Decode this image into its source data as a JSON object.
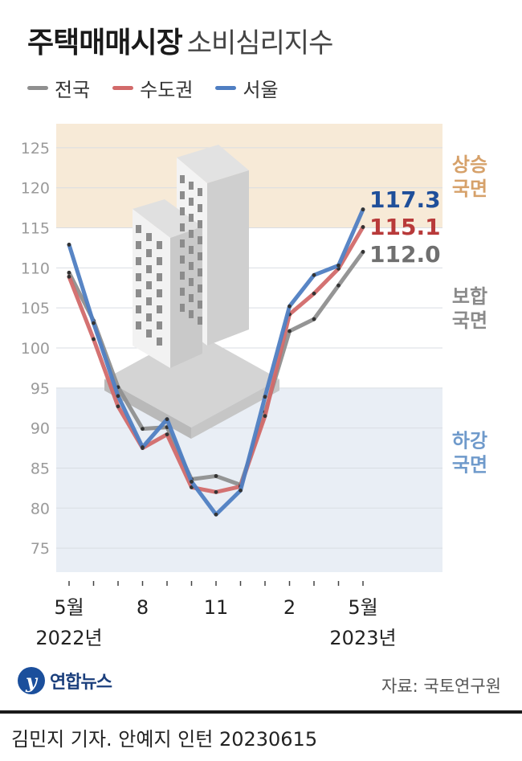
{
  "header": {
    "title": "주택매매시장",
    "subtitle": "소비심리지수"
  },
  "legend": [
    {
      "label": "전국",
      "color": "#8f8f8f"
    },
    {
      "label": "수도권",
      "color": "#d26a6a"
    },
    {
      "label": "서울",
      "color": "#4f7ec2"
    }
  ],
  "chart_data": {
    "type": "line",
    "ylim": [
      72,
      128
    ],
    "yticks": [
      75,
      80,
      85,
      90,
      95,
      100,
      105,
      110,
      115,
      120,
      125
    ],
    "x_tick_labels": [
      "5월",
      "8",
      "11",
      "2",
      "5월"
    ],
    "year_labels": [
      "2022년",
      "2023년"
    ],
    "x": [
      "2022-05",
      "2022-06",
      "2022-07",
      "2022-08",
      "2022-09",
      "2022-10",
      "2022-11",
      "2022-12",
      "2023-01",
      "2023-02",
      "2023-03",
      "2023-04",
      "2023-05"
    ],
    "series": [
      {
        "name": "전국",
        "color": "#8f8f8f",
        "values": [
          109.4,
          103.4,
          95.1,
          89.9,
          90.1,
          83.6,
          84.0,
          82.9,
          92.0,
          102.1,
          103.6,
          107.8,
          112.0
        ]
      },
      {
        "name": "수도권",
        "color": "#d26a6a",
        "values": [
          108.9,
          101.1,
          92.7,
          87.5,
          89.2,
          82.6,
          82.0,
          82.7,
          91.5,
          104.2,
          106.8,
          109.9,
          115.1
        ]
      },
      {
        "name": "서울",
        "color": "#4f7ec2",
        "values": [
          112.9,
          103.1,
          94.0,
          87.6,
          91.1,
          83.3,
          79.2,
          82.2,
          93.9,
          105.2,
          109.1,
          110.3,
          117.3
        ]
      }
    ],
    "end_labels": [
      {
        "text": "117.3",
        "color": "#1f4f9a"
      },
      {
        "text": "115.1",
        "color": "#b83a3a"
      },
      {
        "text": "112.0",
        "color": "#6f6f6f"
      }
    ],
    "bands": [
      {
        "from": 115,
        "to": 128,
        "color": "#f7ead7",
        "label_top": "상승",
        "label_bottom": "국면",
        "label_color": "#d6a16a"
      },
      {
        "from": 95,
        "to": 115,
        "color": "#ffffff",
        "label_top": "보합",
        "label_bottom": "국면",
        "label_color": "#8a8a8a"
      },
      {
        "from": 72,
        "to": 95,
        "color": "#e9eef5",
        "label_top": "하강",
        "label_bottom": "국면",
        "label_color": "#6f9acb"
      }
    ]
  },
  "footer": {
    "logo_mark": "y",
    "logo_text": "연합뉴스",
    "source": "자료: 국토연구원",
    "credit": "김민지 기자. 안예지 인턴  20230615"
  }
}
